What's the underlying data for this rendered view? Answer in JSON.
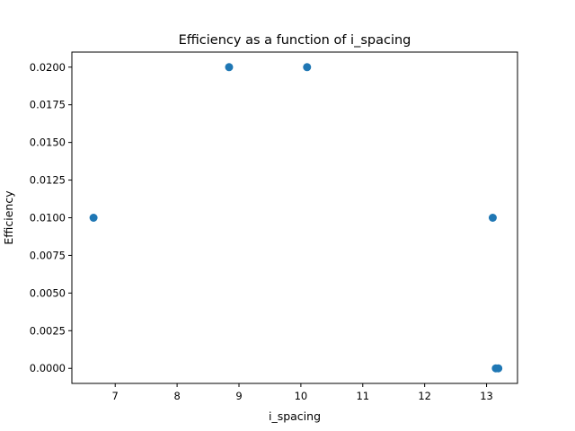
{
  "chart_data": {
    "type": "scatter",
    "title": "Efficiency as a function of i_spacing",
    "xlabel": "i_spacing",
    "ylabel": "Efficiency",
    "xlim": [
      6.3,
      13.5
    ],
    "ylim": [
      -0.001,
      0.021
    ],
    "xticks": [
      7,
      8,
      9,
      10,
      11,
      12,
      13
    ],
    "yticks": [
      0.0,
      0.0025,
      0.005,
      0.0075,
      0.01,
      0.0125,
      0.015,
      0.0175,
      0.02
    ],
    "xtick_labels": [
      "7",
      "8",
      "9",
      "10",
      "11",
      "12",
      "13"
    ],
    "ytick_labels": [
      "0.0000",
      "0.0025",
      "0.0050",
      "0.0075",
      "0.0100",
      "0.0125",
      "0.0150",
      "0.0175",
      "0.0200"
    ],
    "grid": false,
    "color": "#1f77b4",
    "points": [
      {
        "x": 6.65,
        "y": 0.01
      },
      {
        "x": 8.84,
        "y": 0.02
      },
      {
        "x": 10.1,
        "y": 0.02
      },
      {
        "x": 13.1,
        "y": 0.01
      },
      {
        "x": 13.15,
        "y": 0.0
      },
      {
        "x": 13.19,
        "y": 0.0
      }
    ]
  }
}
